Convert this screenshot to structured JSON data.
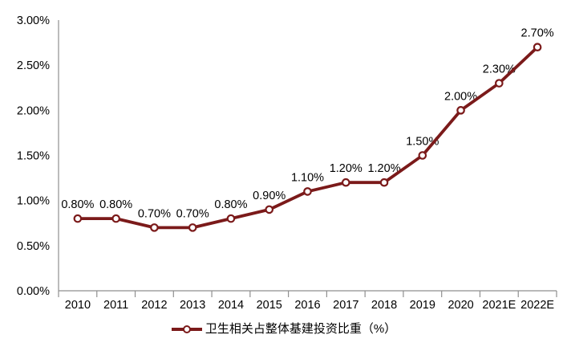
{
  "chart_data": {
    "type": "line",
    "title": "",
    "categories": [
      "2010",
      "2011",
      "2012",
      "2013",
      "2014",
      "2015",
      "2016",
      "2017",
      "2018",
      "2019",
      "2020",
      "2021E",
      "2022E"
    ],
    "series": [
      {
        "name": "卫生相关占整体基建投资比重（%）",
        "values": [
          0.8,
          0.8,
          0.7,
          0.7,
          0.8,
          0.9,
          1.1,
          1.2,
          1.2,
          1.5,
          2.0,
          2.3,
          2.7
        ],
        "point_labels": [
          "0.80%",
          "0.80%",
          "0.70%",
          "0.70%",
          "0.80%",
          "0.90%",
          "1.10%",
          "1.20%",
          "1.20%",
          "1.50%",
          "2.00%",
          "2.30%",
          "2.70%"
        ]
      }
    ],
    "legend": "卫生相关占整体基建投资比重（%）",
    "legend_position": "bottom",
    "xlabel": "",
    "ylabel": "",
    "ylim": [
      0,
      3
    ],
    "ytick_values": [
      0,
      0.5,
      1,
      1.5,
      2,
      2.5,
      3
    ],
    "ytick_labels": [
      "0.00%",
      "0.50%",
      "1.00%",
      "1.50%",
      "2.00%",
      "2.50%",
      "3.00%"
    ],
    "grid": false,
    "colors": {
      "line": "#7B1A1A",
      "marker_fill": "#FFFFFF",
      "axis": "#8F8F8F",
      "text": "#000000",
      "background": "#FFFFFF"
    }
  }
}
